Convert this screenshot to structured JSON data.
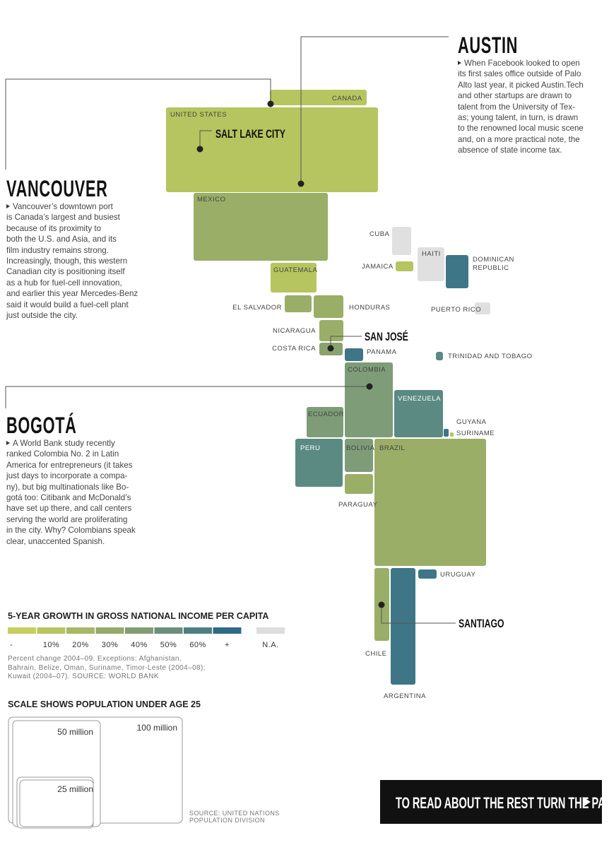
{
  "callouts": {
    "austin": {
      "title": "AUSTIN",
      "lines": [
        "When Facebook looked to open",
        "its first sales office outside of Palo",
        "Alto last year, it picked Austin.Tech",
        "and other startups are drawn to",
        "talent from the University of Tex-",
        "as; young talent, in turn, is drawn",
        "to the renowned local music scene",
        "and, on a more practical note, the",
        "absence of state income tax."
      ]
    },
    "vancouver": {
      "title": "VANCOUVER",
      "lines": [
        "Vancouver’s downtown port",
        "is Canada’s largest and busiest",
        "because of its proximity to",
        "both the U.S. and Asia, and its",
        "film industry remains strong.",
        "Increasingly, though, this western",
        "Canadian city is positioning itself",
        "as a hub for fuel-cell innovation,",
        "and earlier this year Mercedes-Benz",
        "said it would build a fuel-cell plant",
        "just outside the city."
      ]
    },
    "bogota": {
      "title": "BOGOTÁ",
      "lines": [
        "A World Bank study recently",
        "ranked Colombia No. 2 in Latin",
        "America for entrepreneurs (it takes",
        "just days to incorporate a compa-",
        "ny), but big multinationals like Bo-",
        "gotá too: Citibank and McDonald’s",
        "have set up there, and call centers",
        "serving the world are proliferating",
        "in the city. Why? Colombians speak",
        "clear, unaccented Spanish."
      ]
    },
    "salt_lake_city": "SALT LAKE CITY",
    "san_jose": "SAN JOSÉ",
    "santiago": "SANTIAGO"
  },
  "countries": {
    "canada": "CANADA",
    "united_states": "UNITED STATES",
    "mexico": "MEXICO",
    "guatemala": "GUATEMALA",
    "el_salvador": "EL SALVADOR",
    "honduras": "HONDURAS",
    "nicaragua": "NICARAGUA",
    "costa_rica": "COSTA RICA",
    "panama": "PANAMA",
    "colombia": "COLOMBIA",
    "venezuela": "VENEZUELA",
    "ecuador": "ECUADOR",
    "guyana": "GUYANA",
    "suriname": "SURINAME",
    "peru": "PERU",
    "bolivia": "BOLIVIA",
    "brazil": "BRAZIL",
    "paraguay": "PARAGUAY",
    "uruguay": "URUGUAY",
    "chile": "CHILE",
    "argentina": "ARGENTINA",
    "cuba": "CUBA",
    "jamaica": "JAMAICA",
    "haiti": "HAITI",
    "dominican": "DOMINICAN",
    "republic": "REPUBLIC",
    "puerto_rico": "PUERTO RICO",
    "trinidad": "TRINIDAD AND TOBAGO"
  },
  "legend": {
    "title": "5-YEAR GROWTH IN GROSS NATIONAL INCOME PER CAPITA",
    "items": [
      {
        "label": "-",
        "color": "#c4cf5c"
      },
      {
        "label": "10%",
        "color": "#b6c55f"
      },
      {
        "label": "20%",
        "color": "#a6b765"
      },
      {
        "label": "30%",
        "color": "#95aa6b"
      },
      {
        "label": "40%",
        "color": "#829c74"
      },
      {
        "label": "50%",
        "color": "#6a8f7b"
      },
      {
        "label": "60%",
        "color": "#4d7f82"
      },
      {
        "label": "+",
        "color": "#2f6a86"
      },
      {
        "label": "N.A.",
        "color": "#dddddd"
      }
    ],
    "note": [
      "Percent change 2004–09. Exceptions: Afghanistan,",
      "Bahrain, Belize, Oman, Suriname, Timor-Leste (2004–08);",
      "Kuwait (2004–07). SOURCE: WORLD BANK"
    ]
  },
  "scale": {
    "title": "SCALE SHOWS POPULATION UNDER AGE 25",
    "large": "100 million",
    "medium": "50 million",
    "small": "25 million",
    "source": [
      "SOURCE: UNITED NATIONS",
      "POPULATION DIVISION"
    ]
  },
  "banner": "TO READ ABOUT THE REST TURN THE PAGE"
}
